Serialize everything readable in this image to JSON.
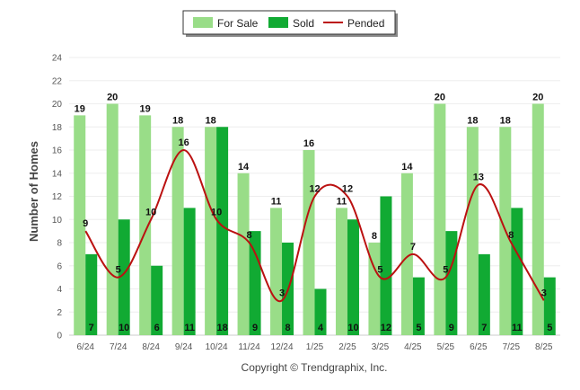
{
  "chart_data": {
    "type": "bar",
    "categories": [
      "6/24",
      "7/24",
      "8/24",
      "9/24",
      "10/24",
      "11/24",
      "12/24",
      "1/25",
      "2/25",
      "3/25",
      "4/25",
      "5/25",
      "6/25",
      "7/25",
      "8/25"
    ],
    "series": [
      {
        "name": "For Sale",
        "kind": "bar",
        "color": "#99dd88",
        "values": [
          19,
          20,
          19,
          18,
          18,
          14,
          11,
          16,
          11,
          8,
          14,
          20,
          18,
          18,
          20
        ]
      },
      {
        "name": "Sold",
        "kind": "bar",
        "color": "#11aa33",
        "values": [
          7,
          10,
          6,
          11,
          18,
          9,
          8,
          4,
          10,
          12,
          5,
          9,
          7,
          11,
          5
        ]
      },
      {
        "name": "Pended",
        "kind": "line",
        "color": "#bb1111",
        "values": [
          9,
          5,
          10,
          16,
          10,
          8,
          3,
          12,
          12,
          5,
          7,
          5,
          13,
          8,
          3
        ]
      }
    ],
    "ylabel": "Number of Homes",
    "xlabel": "",
    "ylim": [
      0,
      24
    ],
    "yticks": [
      0,
      2,
      4,
      6,
      8,
      10,
      12,
      14,
      16,
      18,
      20,
      22,
      24
    ],
    "grid": true,
    "legend_position": "top-center",
    "credit": "Copyright © Trendgraphix, Inc."
  }
}
